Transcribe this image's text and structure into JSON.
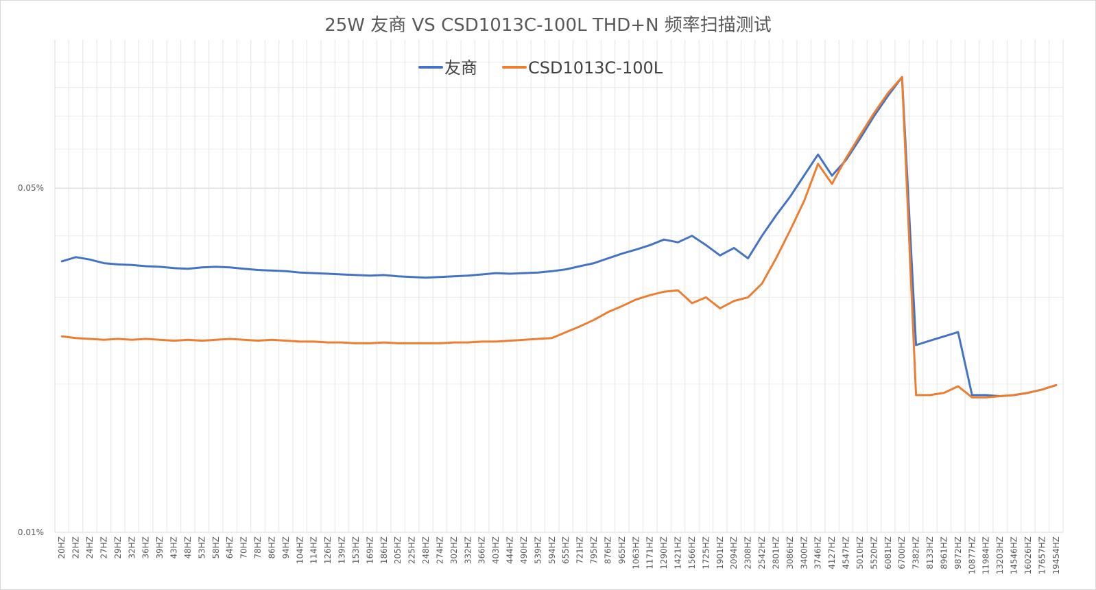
{
  "chart_data": {
    "type": "line",
    "title": "25W 友商 VS CSD1013C-100L THD+N 频率扫描测试",
    "yscale": "log",
    "ylim": [
      0.01,
      0.1
    ],
    "y_ticks": [
      "0.05%",
      "0.01%"
    ],
    "y_tick_values": [
      0.05,
      0.01
    ],
    "legend_position": "top-center",
    "grid": true,
    "x_tick_labels": [
      "20HZ",
      "22HZ",
      "24HZ",
      "27HZ",
      "29HZ",
      "32HZ",
      "36HZ",
      "39HZ",
      "43HZ",
      "48HZ",
      "53HZ",
      "58HZ",
      "64HZ",
      "70HZ",
      "78HZ",
      "86HZ",
      "94HZ",
      "104HZ",
      "114HZ",
      "126HZ",
      "139HZ",
      "153HZ",
      "169HZ",
      "186HZ",
      "205HZ",
      "225HZ",
      "248HZ",
      "274HZ",
      "302HZ",
      "332HZ",
      "366HZ",
      "403HZ",
      "444HZ",
      "490HZ",
      "539HZ",
      "594HZ",
      "655HZ",
      "721HZ",
      "795HZ",
      "876HZ",
      "965HZ",
      "1063HZ",
      "1171HZ",
      "1290HZ",
      "1421HZ",
      "1566HZ",
      "1725HZ",
      "1901HZ",
      "2094HZ",
      "2308HZ",
      "2542HZ",
      "2801HZ",
      "3086HZ",
      "3400HZ",
      "3746HZ",
      "4127HZ",
      "4547HZ",
      "5010HZ",
      "5520HZ",
      "6081HZ",
      "6700HZ",
      "7382HZ",
      "8133HZ",
      "8961HZ",
      "9872HZ",
      "10877HZ",
      "11984HZ",
      "13203HZ",
      "14546HZ",
      "16026HZ",
      "17657HZ",
      "19454HZ"
    ],
    "series": [
      {
        "name": "友商",
        "color": "#4472c4",
        "values": [
          0.0355,
          0.0362,
          0.0358,
          0.0352,
          0.035,
          0.0349,
          0.0347,
          0.0346,
          0.0344,
          0.0343,
          0.0345,
          0.0346,
          0.0345,
          0.0343,
          0.0341,
          0.034,
          0.0339,
          0.0337,
          0.0336,
          0.0335,
          0.0334,
          0.0333,
          0.0332,
          0.0333,
          0.0331,
          0.033,
          0.0329,
          0.033,
          0.0331,
          0.0332,
          0.0334,
          0.0336,
          0.0335,
          0.0336,
          0.0337,
          0.0339,
          0.0342,
          0.0347,
          0.0352,
          0.036,
          0.0368,
          0.0375,
          0.0383,
          0.0393,
          0.0388,
          0.04,
          0.0383,
          0.0365,
          0.0378,
          0.036,
          0.04,
          0.044,
          0.048,
          0.053,
          0.0585,
          0.053,
          0.057,
          0.063,
          0.07,
          0.077,
          0.084,
          0.024,
          0.0245,
          0.025,
          0.0255,
          0.019,
          0.019,
          0.0189,
          0.019,
          0.0192,
          0.0195,
          0.0199
        ]
      },
      {
        "name": "CSD1013C-100L",
        "color": "#ed7d31",
        "values": [
          0.025,
          0.0248,
          0.0247,
          0.0246,
          0.0247,
          0.0246,
          0.0247,
          0.0246,
          0.0245,
          0.0246,
          0.0245,
          0.0246,
          0.0247,
          0.0246,
          0.0245,
          0.0246,
          0.0245,
          0.0244,
          0.0244,
          0.0243,
          0.0243,
          0.0242,
          0.0242,
          0.0243,
          0.0242,
          0.0242,
          0.0242,
          0.0242,
          0.0243,
          0.0243,
          0.0244,
          0.0244,
          0.0245,
          0.0246,
          0.0247,
          0.0248,
          0.0255,
          0.0262,
          0.027,
          0.028,
          0.0288,
          0.0297,
          0.0303,
          0.0308,
          0.031,
          0.0292,
          0.03,
          0.0285,
          0.0295,
          0.03,
          0.032,
          0.036,
          0.041,
          0.047,
          0.056,
          0.051,
          0.0575,
          0.064,
          0.071,
          0.078,
          0.084,
          0.019,
          0.019,
          0.0192,
          0.0198,
          0.0188,
          0.0188,
          0.0189,
          0.019,
          0.0192,
          0.0195,
          0.0199
        ]
      }
    ]
  }
}
